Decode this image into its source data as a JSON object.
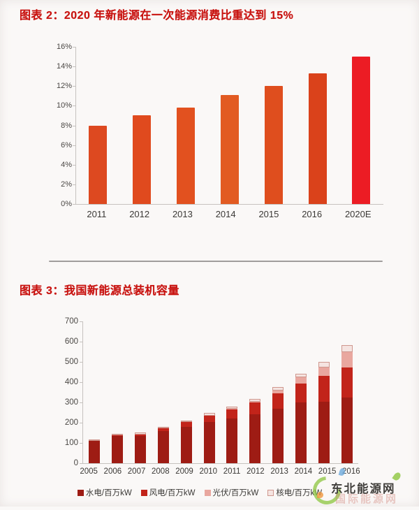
{
  "page": {
    "background": "#faf8f7",
    "title_color": "#c8120f"
  },
  "figure2": {
    "title": "图表 2：2020 年新能源在一次能源消费比重达到 15%"
  },
  "figure3": {
    "title": "图表 3：我国新能源总装机容量"
  },
  "watermark": {
    "site_name": "东北能源网",
    "ghost_text": "国际能源网",
    "logo": "green-swirl-leaf-logo"
  },
  "chart_data": [
    {
      "type": "bar",
      "title": "2020 年新能源在一次能源消费比重达到 15%",
      "categories": [
        "2011",
        "2012",
        "2013",
        "2014",
        "2015",
        "2016",
        "2020E"
      ],
      "values": [
        8.0,
        9.0,
        9.8,
        11.1,
        12.0,
        13.3,
        15.0
      ],
      "unit": "%",
      "ylim": [
        0,
        16
      ],
      "ytick_step": 2,
      "ytick_labels": [
        "0%",
        "2%",
        "4%",
        "6%",
        "8%",
        "10%",
        "12%",
        "14%",
        "16%"
      ],
      "bar_colors": [
        "#dd4920",
        "#e04a1e",
        "#e2511f",
        "#e25b22",
        "#df4e1e",
        "#da421b",
        "#ec1c24"
      ],
      "grid": false,
      "legend_position": "none",
      "xlabel": "",
      "ylabel": ""
    },
    {
      "type": "stacked-bar",
      "title": "我国新能源总装机容量",
      "categories": [
        "2005",
        "2006",
        "2007",
        "2008",
        "2009",
        "2010",
        "2011",
        "2012",
        "2013",
        "2014",
        "2015",
        "2016"
      ],
      "series": [
        {
          "name": "水电/百万kW",
          "color": "#9e1c14",
          "values": [
            110,
            135,
            136,
            160,
            180,
            205,
            220,
            240,
            270,
            300,
            305,
            325
          ]
        },
        {
          "name": "风电/百万kW",
          "color": "#c2241a",
          "values": [
            1,
            3,
            6,
            12,
            22,
            30,
            45,
            60,
            75,
            95,
            125,
            148
          ]
        },
        {
          "name": "光伏/百万kW",
          "color": "#e9a79f",
          "values": [
            0,
            0,
            0,
            0,
            0,
            1,
            3,
            4,
            15,
            28,
            43,
            75
          ]
        },
        {
          "name": "核电/百万kW",
          "color": "#f5e4e1",
          "values": [
            7,
            7,
            9,
            9,
            9,
            11,
            13,
            13,
            15,
            20,
            27,
            33
          ]
        }
      ],
      "totals_approx": [
        118,
        145,
        151,
        181,
        211,
        247,
        281,
        317,
        375,
        443,
        500,
        581
      ],
      "ylim": [
        0,
        700
      ],
      "ytick_step": 100,
      "ytick_labels": [
        "0",
        "100",
        "200",
        "300",
        "400",
        "500",
        "600",
        "700"
      ],
      "grid": false,
      "legend_position": "bottom",
      "xlabel": "",
      "ylabel": ""
    }
  ]
}
